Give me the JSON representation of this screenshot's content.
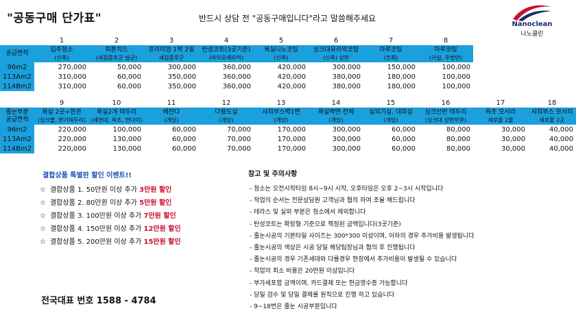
{
  "header": {
    "title": "\"공동구매 단가표\"",
    "subtitle": "반드시 상담 전 \"공동구매입니다\"라고 말씀해주세요",
    "logo_brand": "Nanoclean",
    "logo_brand_ko": "나노클린",
    "logo_colors": [
      "#c8102e",
      "#1a2b6d"
    ]
  },
  "colors": {
    "header_bg": "#1ba0de",
    "promo_title": "#1f4fb8",
    "highlight": "#c8102e"
  },
  "table1": {
    "numbers": [
      "1",
      "2",
      "3",
      "4",
      "5",
      "6",
      "7",
      "8"
    ],
    "side_head": [
      "공급면적"
    ],
    "headers": [
      [
        "입주청소",
        "(신축)"
      ],
      [
        "피톤치드",
        "(새집증후군 살균)"
      ],
      [
        "프리미엄 1박 2일",
        "새집증후군"
      ],
      [
        "탄성코트(3곳기준)",
        "(바이오세라믹)"
      ],
      [
        "욕실나노코팅",
        "(신축)"
      ],
      [
        "싱크대유리막코팅",
        "(신축) 상판"
      ],
      [
        "마루코팅",
        "(전체)"
      ],
      [
        "마루코팅",
        "(거실, 주방만)"
      ]
    ],
    "rows": [
      {
        "label": "96m2",
        "cells": [
          "270,000",
          "50,000",
          "300,000",
          "360,000",
          "420,000",
          "300,000",
          "150,000",
          "100,000"
        ]
      },
      {
        "label": "113Am2",
        "cells": [
          "310,000",
          "60,000",
          "350,000",
          "360,000",
          "420,000",
          "380,000",
          "180,000",
          "100,000"
        ]
      },
      {
        "label": "114Bm2",
        "cells": [
          "310,000",
          "60,000",
          "350,000",
          "360,000",
          "420,000",
          "380,000",
          "180,000",
          "100,000"
        ]
      }
    ]
  },
  "table2": {
    "numbers": [
      "9",
      "10",
      "11",
      "12",
      "13",
      "14",
      "15",
      "16",
      "17",
      "18"
    ],
    "side_head": [
      "줄눈부분",
      "공급면적"
    ],
    "headers": [
      [
        "욕실 2곳+현관",
        "(싱크볼, 변기테두리)"
      ],
      [
        "욕실2개 테두리",
        "(세면대, 욕조, 현다이)"
      ],
      [
        "베란다",
        "(개당)"
      ],
      [
        "다용도실",
        "(개당)"
      ],
      [
        "샤워부스벽1면",
        "(개당)"
      ],
      [
        "욕실벽면 전체",
        "(개당)"
      ],
      [
        "실외기실, 대피실",
        "(개당)"
      ],
      [
        "싱크선반 테두리",
        "(싱크대 상판부분)"
      ],
      [
        "욕조 모서리",
        "세로줄 2줄"
      ],
      [
        "샤워부스 모서리",
        "세로줄 2곳"
      ]
    ],
    "rows": [
      {
        "label": "96m2",
        "cells": [
          "220,000",
          "100,000",
          "60,000",
          "70,000",
          "170,000",
          "300,000",
          "60,000",
          "80,000",
          "30,000",
          "40,000"
        ]
      },
      {
        "label": "113Am2",
        "cells": [
          "220,000",
          "130,000",
          "60,000",
          "70,000",
          "170,000",
          "300,000",
          "60,000",
          "80,000",
          "30,000",
          "40,000"
        ]
      },
      {
        "label": "114Bm2",
        "cells": [
          "220,000",
          "130,000",
          "60,000",
          "70,000",
          "170,000",
          "300,000",
          "60,000",
          "80,000",
          "30,000",
          "40,000"
        ]
      }
    ]
  },
  "promo": {
    "title": "결합상품 특별판 할인 이벤트!!",
    "items": [
      {
        "star": "☆",
        "text": "결합상품 1.  50만원 이상 추가 ",
        "highlight": "3만원 할인"
      },
      {
        "star": "☆",
        "text": "결합상품 2.  80만원 이상 추가 ",
        "highlight": "5만원 할인"
      },
      {
        "star": "☆",
        "text": "결합상품 3.  100만원 이상 추가 ",
        "highlight": "7만원 할인"
      },
      {
        "star": "☆",
        "text": "결합상품 4.  150만원 이상 추가 ",
        "highlight": "12만원 할인"
      },
      {
        "star": "☆",
        "text": "결합상품 5.  200만원 이상 추가 ",
        "highlight": "15만원 할인"
      }
    ]
  },
  "phone": "전국대표 번호  1588 - 4784",
  "notes": {
    "title": "참고 및 주의사항",
    "items": [
      "- 청소는 오전시작타임 8시~9시 시작, 오후타임은 오후 2~3시 시작입니다",
      "- 작업의 순서는 전문상담원 고객님과 협의 하여 조율 해드립니다",
      "- 테라스 및 실외 부분은 청소에서 제외합니다",
      "- 탄성코트는 확장형 기준으로 책정된 금액입니다(3곳기준)",
      "- 줄눈시공의 기본타일 사이즈는 300*300 이상이며, 이하의 경우 추가비용 발생됩니다",
      "- 줄눈시공의 색상은 시공 당일 해당팀장님과 협의 후 진행됩니다",
      "- 줄눈시공의 경우 기존세대와 다를경우 현장에서 추가비용이 발생될 수 있습니다",
      "- 작업의 최소 비용은 20만원 이상입니다",
      "- 부가세포함 금액이며, 카드결제 또는 현금영수증 가능합니다",
      "- 당일 검수 및 당일 결제를 원칙으로 진행 하고 있습니다",
      "- 9~18번은 줄눈 시공부분입니다"
    ]
  }
}
